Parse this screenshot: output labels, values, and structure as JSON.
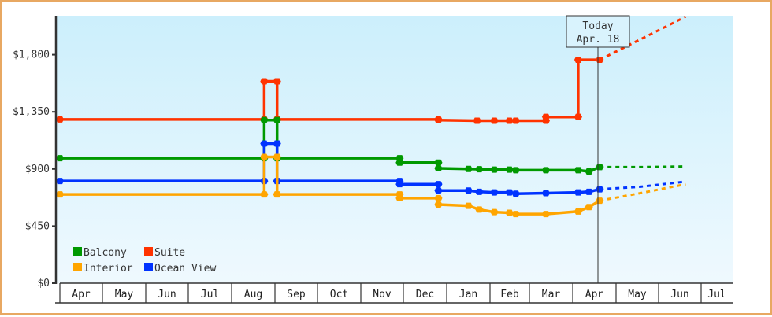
{
  "chart_data": {
    "type": "line",
    "title": "",
    "xlabel": "",
    "ylabel": "",
    "ylim": [
      0,
      2100
    ],
    "y_ticks": [
      "$0",
      "$450",
      "$900",
      "$1,350",
      "$1,800"
    ],
    "y_tick_values": [
      0,
      450,
      900,
      1350,
      1800
    ],
    "x_ticks": [
      "Apr",
      "May",
      "Jun",
      "Jul",
      "Aug",
      "Sep",
      "Oct",
      "Nov",
      "Dec",
      "Jan",
      "Feb",
      "Mar",
      "Apr",
      "May",
      "Jun",
      "Jul"
    ],
    "grid": false,
    "legend_position": "bottom-left inside",
    "today_marker": {
      "line1": "Today",
      "line2": "Apr. 18"
    },
    "colors": {
      "Balcony": "#009900",
      "Suite": "#ff3300",
      "Interior": "#ffa500",
      "Ocean View": "#0033ff",
      "frame": "#e8a862",
      "axis": "#333333",
      "plot_bg_top": "#cceffc",
      "plot_bg_bottom": "#eef9fe"
    },
    "series": [
      {
        "name": "Suite",
        "note": "historical price steps (month offset from first Apr, price USD)",
        "points": [
          [
            0,
            1290
          ],
          [
            4.75,
            1290
          ],
          [
            4.75,
            1590
          ],
          [
            5.05,
            1590
          ],
          [
            5.05,
            1290
          ],
          [
            8.8,
            1290
          ],
          [
            8.8,
            1285
          ],
          [
            9.7,
            1280
          ],
          [
            10.1,
            1280
          ],
          [
            10.45,
            1280
          ],
          [
            10.6,
            1280
          ],
          [
            11.3,
            1280
          ],
          [
            11.3,
            1310
          ],
          [
            12.05,
            1310
          ],
          [
            12.05,
            1760
          ],
          [
            12.55,
            1760
          ]
        ],
        "forecast": [
          [
            12.55,
            1760
          ],
          [
            14.55,
            2100
          ]
        ]
      },
      {
        "name": "Balcony",
        "points": [
          [
            0,
            985
          ],
          [
            4.75,
            985
          ],
          [
            4.75,
            1285
          ],
          [
            5.05,
            1285
          ],
          [
            5.05,
            985
          ],
          [
            7.9,
            985
          ],
          [
            7.9,
            950
          ],
          [
            8.8,
            950
          ],
          [
            8.8,
            905
          ],
          [
            9.5,
            900
          ],
          [
            9.75,
            898
          ],
          [
            10.1,
            895
          ],
          [
            10.45,
            895
          ],
          [
            10.6,
            890
          ],
          [
            11.3,
            890
          ],
          [
            12.05,
            890
          ],
          [
            12.3,
            880
          ],
          [
            12.55,
            915
          ]
        ],
        "forecast": [
          [
            12.55,
            915
          ],
          [
            13.5,
            915
          ],
          [
            14.55,
            920
          ]
        ]
      },
      {
        "name": "Ocean View",
        "points": [
          [
            0,
            805
          ],
          [
            4.75,
            805
          ],
          [
            4.75,
            1100
          ],
          [
            5.05,
            1100
          ],
          [
            5.05,
            805
          ],
          [
            7.9,
            805
          ],
          [
            7.9,
            780
          ],
          [
            8.8,
            780
          ],
          [
            8.8,
            730
          ],
          [
            9.5,
            730
          ],
          [
            9.75,
            720
          ],
          [
            10.1,
            715
          ],
          [
            10.45,
            715
          ],
          [
            10.6,
            705
          ],
          [
            11.3,
            710
          ],
          [
            12.05,
            715
          ],
          [
            12.3,
            720
          ],
          [
            12.55,
            740
          ]
        ],
        "forecast": [
          [
            12.55,
            740
          ],
          [
            13.5,
            760
          ],
          [
            14.55,
            800
          ]
        ]
      },
      {
        "name": "Interior",
        "points": [
          [
            0,
            700
          ],
          [
            4.75,
            700
          ],
          [
            4.75,
            995
          ],
          [
            5.05,
            995
          ],
          [
            5.05,
            700
          ],
          [
            7.9,
            700
          ],
          [
            7.9,
            670
          ],
          [
            8.8,
            670
          ],
          [
            8.8,
            620
          ],
          [
            9.5,
            610
          ],
          [
            9.75,
            580
          ],
          [
            10.1,
            560
          ],
          [
            10.45,
            555
          ],
          [
            10.6,
            545
          ],
          [
            11.3,
            545
          ],
          [
            12.05,
            565
          ],
          [
            12.3,
            600
          ],
          [
            12.55,
            650
          ]
        ],
        "forecast": [
          [
            12.55,
            650
          ],
          [
            13.5,
            710
          ],
          [
            14.55,
            780
          ]
        ]
      }
    ]
  },
  "legend": {
    "items": [
      {
        "label": "Balcony",
        "color": "#009900"
      },
      {
        "label": "Suite",
        "color": "#ff3300"
      },
      {
        "label": "Interior",
        "color": "#ffa500"
      },
      {
        "label": "Ocean View",
        "color": "#0033ff"
      }
    ]
  },
  "today_label": {
    "line1": "Today",
    "line2": "Apr. 18"
  }
}
